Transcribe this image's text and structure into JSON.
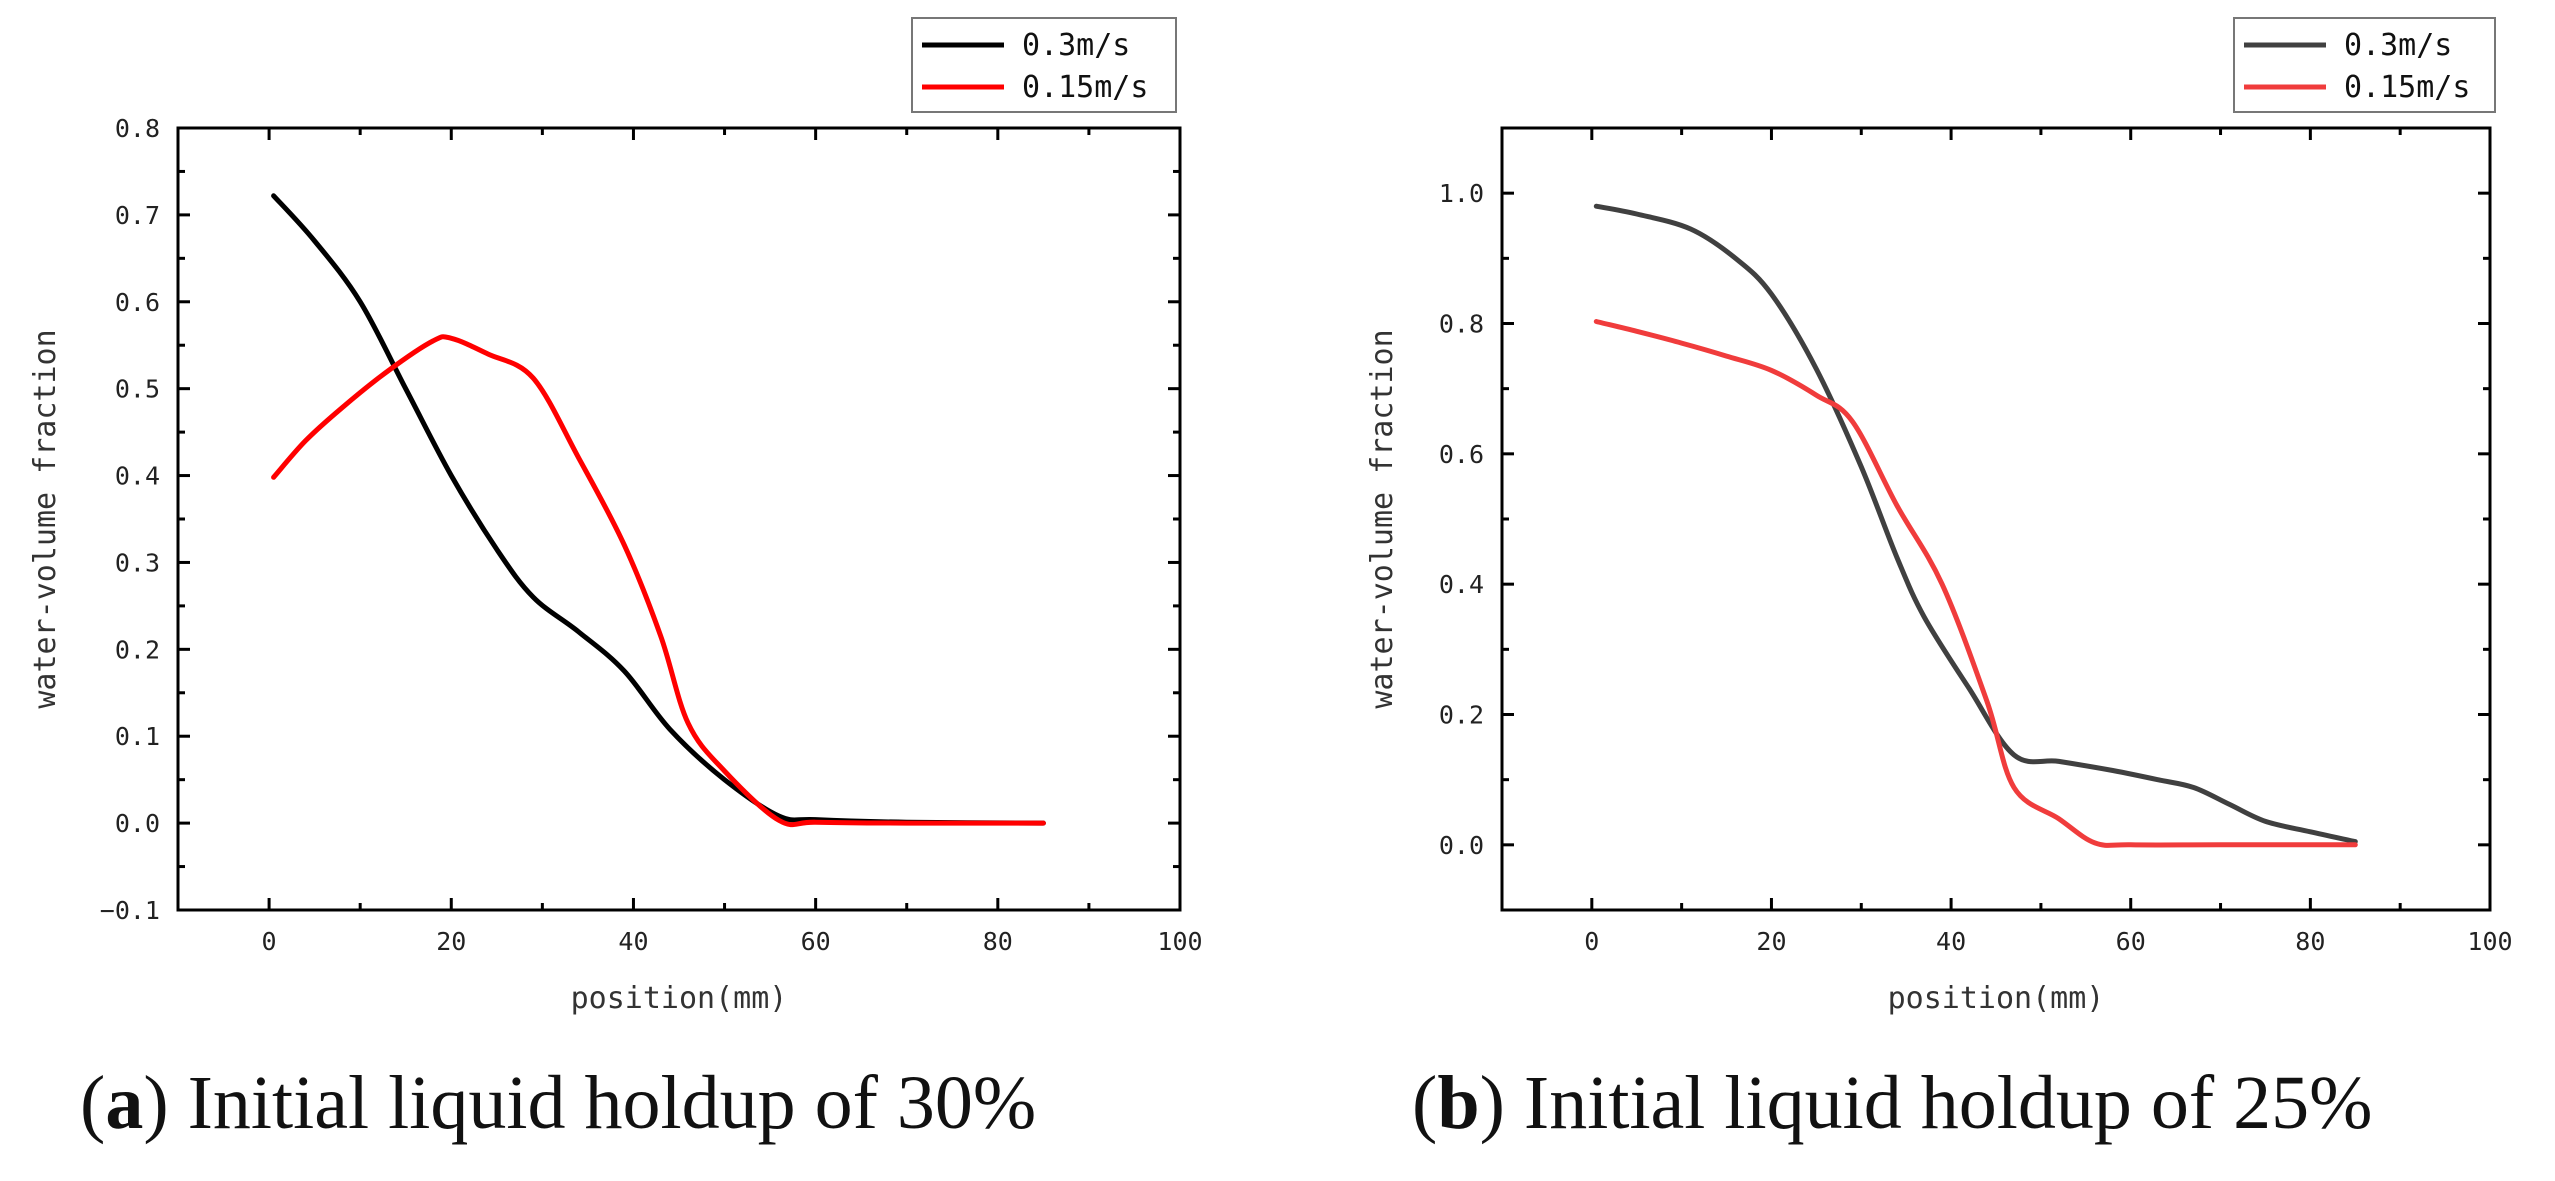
{
  "chart_data": [
    {
      "type": "line",
      "id": "a",
      "caption_letter": "a",
      "caption_text": "Initial liquid holdup of 30%",
      "xlabel": "position(mm)",
      "ylabel": "water-volume fraction",
      "xlim": [
        -10,
        100
      ],
      "ylim": [
        -0.1,
        0.8
      ],
      "xticks": [
        0,
        20,
        40,
        60,
        80,
        100
      ],
      "xtick_labels": [
        "0",
        "20",
        "40",
        "60",
        "80",
        "100"
      ],
      "yticks": [
        -0.1,
        0.0,
        0.1,
        0.2,
        0.3,
        0.4,
        0.5,
        0.6,
        0.7,
        0.8
      ],
      "ytick_labels": [
        "−0.1",
        "0.0",
        "0.1",
        "0.2",
        "0.3",
        "0.4",
        "0.5",
        "0.6",
        "0.7",
        "0.8"
      ],
      "legend_position": "top-right",
      "series": [
        {
          "name": "0.3m/s",
          "color": "#000000",
          "x": [
            0.5,
            5,
            10,
            15,
            20,
            25,
            29,
            34,
            39,
            44,
            50,
            56,
            60,
            70,
            85
          ],
          "y": [
            0.722,
            0.67,
            0.6,
            0.5,
            0.4,
            0.315,
            0.26,
            0.22,
            0.175,
            0.108,
            0.05,
            0.008,
            0.004,
            0.001,
            0.0
          ]
        },
        {
          "name": "0.15m/s",
          "color": "#ff0000",
          "x": [
            0.5,
            4,
            8,
            13,
            18,
            20,
            24,
            29,
            34,
            39,
            43,
            46,
            50,
            56,
            60,
            70,
            85
          ],
          "y": [
            0.398,
            0.44,
            0.478,
            0.52,
            0.555,
            0.558,
            0.54,
            0.512,
            0.42,
            0.32,
            0.215,
            0.115,
            0.06,
            0.003,
            0.001,
            0.0,
            0.0
          ]
        }
      ]
    },
    {
      "type": "line",
      "id": "b",
      "caption_letter": "b",
      "caption_text": "Initial liquid holdup of 25%",
      "xlabel": "position(mm)",
      "ylabel": "water-volume fraction",
      "xlim": [
        -10,
        100
      ],
      "ylim": [
        -0.1,
        1.1
      ],
      "xticks": [
        0,
        20,
        40,
        60,
        80,
        100
      ],
      "xtick_labels": [
        "0",
        "20",
        "40",
        "60",
        "80",
        "100"
      ],
      "yticks": [
        0.0,
        0.2,
        0.4,
        0.6,
        0.8,
        1.0
      ],
      "ytick_labels": [
        "0.0",
        "0.2",
        "0.4",
        "0.6",
        "0.8",
        "1.0"
      ],
      "legend_position": "top-right",
      "series": [
        {
          "name": "0.3m/s",
          "color": "#404040",
          "x": [
            0.5,
            5,
            11,
            16,
            20,
            25,
            30,
            34,
            37,
            42,
            47,
            52,
            58,
            63,
            67,
            71,
            75,
            80,
            85
          ],
          "y": [
            0.98,
            0.968,
            0.945,
            0.9,
            0.845,
            0.73,
            0.58,
            0.44,
            0.35,
            0.24,
            0.138,
            0.128,
            0.114,
            0.1,
            0.088,
            0.062,
            0.036,
            0.02,
            0.005
          ]
        },
        {
          "name": "0.15m/s",
          "color": "#f03c3c",
          "x": [
            0.5,
            5,
            10,
            15,
            20,
            25,
            29,
            34,
            39,
            44,
            47,
            52,
            56,
            60,
            70,
            85
          ],
          "y": [
            0.803,
            0.788,
            0.77,
            0.75,
            0.728,
            0.69,
            0.65,
            0.52,
            0.4,
            0.22,
            0.088,
            0.04,
            0.003,
            0.0,
            0.0,
            0.0
          ]
        }
      ]
    }
  ]
}
